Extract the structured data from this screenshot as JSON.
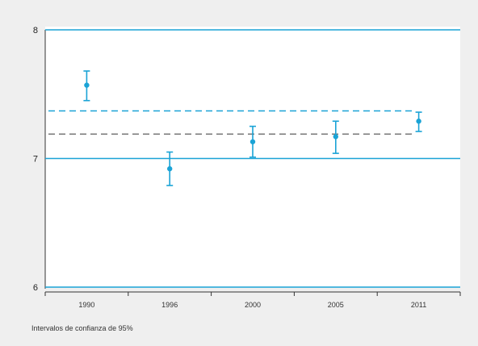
{
  "chart_data": {
    "type": "scatter",
    "title": "",
    "xlabel": "",
    "ylabel": "",
    "categories": [
      "1990",
      "1996",
      "2000",
      "2005",
      "2011"
    ],
    "ylim": [
      6,
      8
    ],
    "yticks": [
      "6",
      "7",
      "8"
    ],
    "series": [
      {
        "values": [
          7.57,
          6.92,
          7.13,
          7.17,
          7.29
        ],
        "ci_lower": [
          7.45,
          6.79,
          7.01,
          7.04,
          7.21
        ],
        "ci_upper": [
          7.68,
          7.05,
          7.25,
          7.29,
          7.36
        ]
      }
    ],
    "reference_lines": [
      {
        "value": 7.37,
        "style": "dashed",
        "color": "#1aa3d6"
      },
      {
        "value": 7.19,
        "style": "dashed",
        "color": "#777777"
      }
    ],
    "band_lines": [
      8,
      7,
      6
    ],
    "grid": false,
    "note": "Intervalos de confianza de 95%",
    "colors": {
      "accent": "#1aa3d6",
      "reference": "#777777",
      "background": "#efefef"
    }
  }
}
